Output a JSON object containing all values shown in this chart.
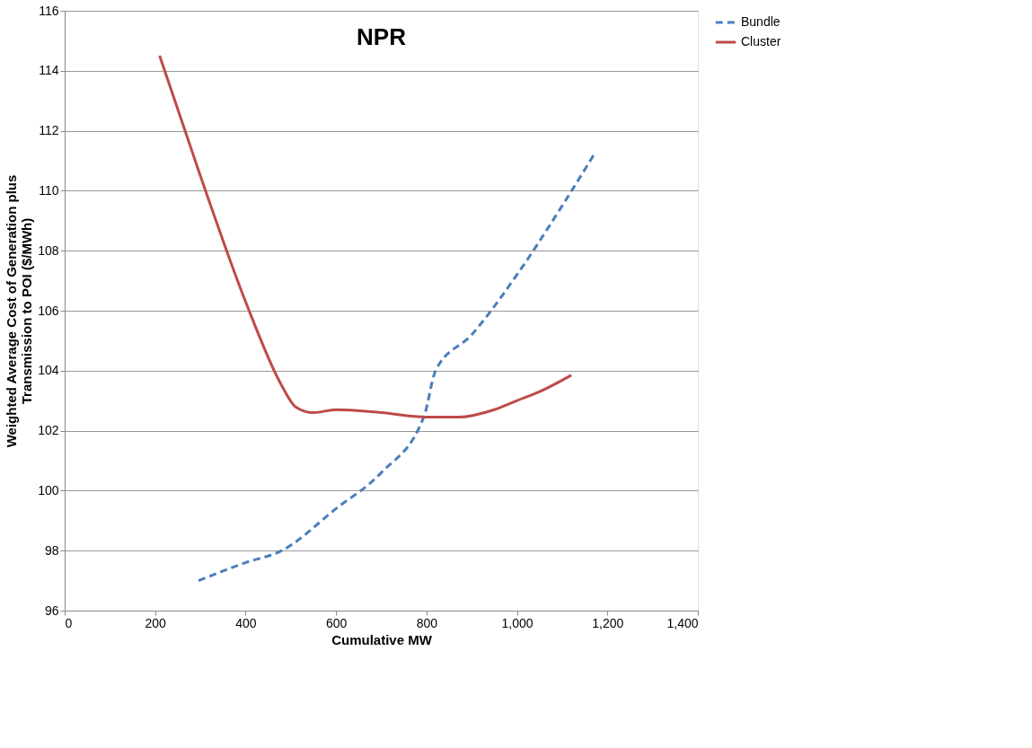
{
  "chart_data": {
    "type": "line",
    "title": "NPR",
    "xlabel": "Cumulative MW",
    "ylabel": "Weighted Average Cost of Generation plus\nTransmission to POI ($/MWh)",
    "xlim": [
      0,
      1400
    ],
    "xticks": [
      0,
      200,
      400,
      600,
      800,
      {
        "value": 1000,
        "label": "1,000"
      },
      {
        "value": 1200,
        "label": "1,200"
      },
      {
        "value": 1400,
        "label": "1,400"
      }
    ],
    "ylim": [
      96,
      116
    ],
    "yticks": [
      96,
      98,
      100,
      102,
      104,
      106,
      108,
      110,
      112,
      114,
      116
    ],
    "grid": "y",
    "legend": "right",
    "marker": "none",
    "series": [
      {
        "name": "Bundle",
        "color": "#4a7ebb",
        "line_style": "dashed",
        "x": [
          296,
          400,
          480,
          600,
          700,
          795,
          820,
          900,
          1000,
          1100,
          1170
        ],
        "values": [
          97.0,
          97.6,
          98.0,
          99.4,
          100.6,
          102.5,
          104.0,
          105.2,
          107.2,
          109.5,
          111.2
        ]
      },
      {
        "name": "Cluster",
        "color": "#be4b48",
        "line_style": "solid",
        "x": [
          210,
          300,
          400,
          480,
          510,
          550,
          600,
          700,
          800,
          870,
          950,
          1000,
          1050,
          1120
        ],
        "values": [
          114.5,
          110.5,
          106.3,
          103.5,
          102.8,
          102.6,
          102.7,
          102.6,
          102.45,
          102.45,
          102.7,
          103.0,
          103.3,
          103.85
        ]
      }
    ]
  }
}
